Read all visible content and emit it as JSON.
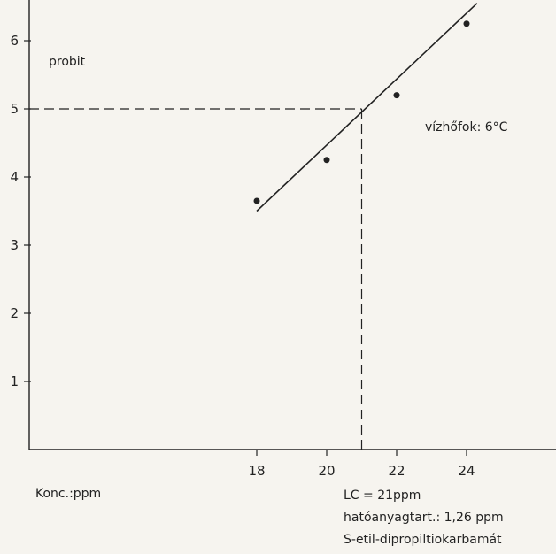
{
  "chart_data": {
    "type": "scatter",
    "x": [
      18,
      20,
      22,
      24
    ],
    "y": [
      3.65,
      4.25,
      5.2,
      6.25
    ],
    "fit_line": {
      "x": [
        18,
        24.3
      ],
      "y": [
        3.5,
        6.55
      ]
    },
    "reference": {
      "x": 21,
      "y": 5
    },
    "xticks": [
      "18",
      "20",
      "22",
      "24"
    ],
    "yticks": [
      "1",
      "2",
      "3",
      "4",
      "5",
      "6"
    ],
    "xlim": [
      11.5,
      26.5
    ],
    "ylim": [
      0,
      6.5
    ],
    "grid": false,
    "ylabel": "probit",
    "xlabel": "Konc.:ppm",
    "note": "vízhőfok: 6°C",
    "footer": [
      "LC  = 21ppm",
      "hatóanyagtart.: 1,26 ppm",
      "S-etil-dipropiltiokarbamát"
    ],
    "colors": {
      "ink": "#222222",
      "background": "#f6f4ef"
    }
  }
}
